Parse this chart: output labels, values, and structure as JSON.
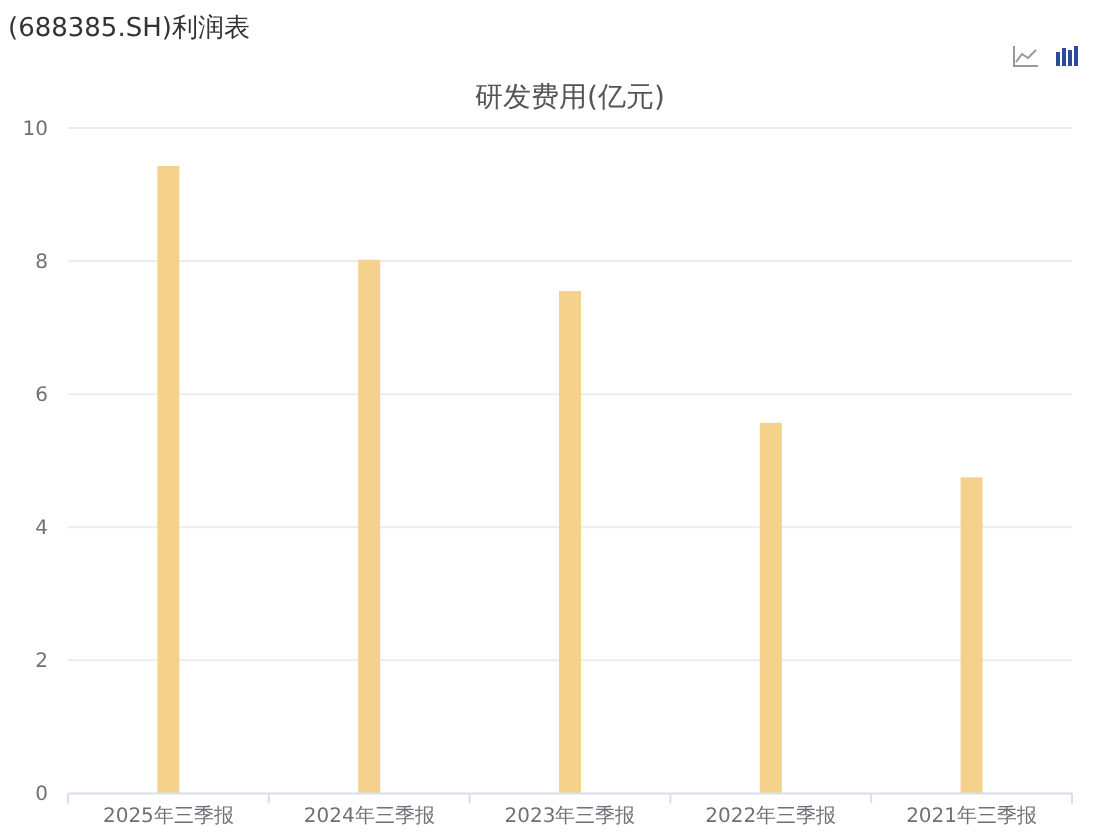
{
  "chart_data": {
    "type": "bar",
    "title": "研发费用(亿元)",
    "annotations": [
      "(688385.SH)利润表"
    ],
    "categories": [
      "2025年三季报",
      "2024年三季报",
      "2023年三季报",
      "2022年三季报",
      "2021年三季报"
    ],
    "values": [
      9.43,
      8.02,
      7.55,
      5.57,
      4.75
    ],
    "color": "#f5d28c",
    "ylim": [
      0,
      10
    ],
    "yticks": [
      0,
      2,
      4,
      6,
      8,
      10
    ],
    "grid": "y"
  }
}
